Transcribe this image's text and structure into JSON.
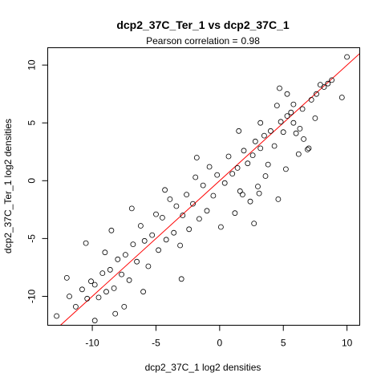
{
  "chart_data": {
    "type": "scatter",
    "title": "dcp2_37C_Ter_1 vs dcp2_37C_1",
    "subtitle_prefix": "Pearson correlation =",
    "pearson_correlation": "0.98",
    "xlabel": "dcp2_37C_1 log2 densities",
    "ylabel": "dcp2_37C_Ter_1 log2 densities",
    "xlim": [
      -13.5,
      11
    ],
    "ylim": [
      -12.5,
      11.5
    ],
    "x_ticks": [
      -10,
      -5,
      0,
      5,
      10
    ],
    "y_ticks": [
      -10,
      -5,
      0,
      5,
      10
    ],
    "x_tick_labels": [
      "-10",
      "-5",
      "0",
      "5",
      "10"
    ],
    "y_tick_labels": [
      "-10",
      "-5",
      "0",
      "5",
      "10"
    ],
    "point_marker": "open-circle",
    "point_color": "#000000",
    "fit_line": {
      "slope": 1.0,
      "intercept": 0.0,
      "color": "#ff0000"
    },
    "points": [
      [
        10.0,
        10.7
      ],
      [
        9.6,
        7.2
      ],
      [
        8.8,
        8.7
      ],
      [
        8.5,
        8.4
      ],
      [
        8.2,
        8.1
      ],
      [
        7.9,
        8.3
      ],
      [
        7.6,
        7.5
      ],
      [
        7.2,
        7.0
      ],
      [
        7.0,
        2.8
      ],
      [
        6.9,
        2.7
      ],
      [
        6.6,
        3.6
      ],
      [
        6.2,
        2.3
      ],
      [
        6.0,
        4.1
      ],
      [
        5.8,
        6.6
      ],
      [
        5.6,
        5.9
      ],
      [
        5.3,
        5.6
      ],
      [
        5.2,
        1.0
      ],
      [
        5.0,
        4.2
      ],
      [
        4.8,
        5.1
      ],
      [
        4.5,
        6.5
      ],
      [
        4.3,
        3.0
      ],
      [
        4.0,
        4.3
      ],
      [
        3.8,
        1.4
      ],
      [
        3.6,
        0.4
      ],
      [
        3.5,
        3.9
      ],
      [
        3.2,
        2.8
      ],
      [
        3.0,
        -0.5
      ],
      [
        2.8,
        3.4
      ],
      [
        2.6,
        2.2
      ],
      [
        2.4,
        -1.8
      ],
      [
        2.2,
        1.5
      ],
      [
        1.9,
        2.6
      ],
      [
        1.6,
        -0.9
      ],
      [
        1.4,
        1.1
      ],
      [
        1.2,
        -2.8
      ],
      [
        1.0,
        0.6
      ],
      [
        0.7,
        2.1
      ],
      [
        0.4,
        -0.2
      ],
      [
        0.1,
        -4.0
      ],
      [
        -0.2,
        0.5
      ],
      [
        -0.5,
        -1.3
      ],
      [
        -0.8,
        1.2
      ],
      [
        -1.0,
        -2.6
      ],
      [
        -1.3,
        -0.4
      ],
      [
        -1.6,
        -3.3
      ],
      [
        -1.9,
        0.3
      ],
      [
        -2.1,
        -2.0
      ],
      [
        -2.4,
        -4.2
      ],
      [
        -2.6,
        -1.2
      ],
      [
        -2.9,
        -3.0
      ],
      [
        -3.1,
        -5.6
      ],
      [
        -3.4,
        -2.2
      ],
      [
        -3.6,
        -4.5
      ],
      [
        -3.9,
        -1.6
      ],
      [
        -4.2,
        -5.1
      ],
      [
        -4.5,
        -3.2
      ],
      [
        -4.8,
        -6.0
      ],
      [
        -5.0,
        -2.9
      ],
      [
        -5.3,
        -4.7
      ],
      [
        -5.6,
        -7.4
      ],
      [
        -5.9,
        -5.2
      ],
      [
        -6.2,
        -3.9
      ],
      [
        -6.5,
        -7.0
      ],
      [
        -6.8,
        -5.5
      ],
      [
        -7.1,
        -8.6
      ],
      [
        -7.4,
        -6.4
      ],
      [
        -7.7,
        -8.1
      ],
      [
        -8.0,
        -6.8
      ],
      [
        -8.3,
        -9.3
      ],
      [
        -8.6,
        -7.7
      ],
      [
        -8.9,
        -9.6
      ],
      [
        -9.2,
        -8.0
      ],
      [
        -9.5,
        -10.1
      ],
      [
        -9.8,
        -9.0
      ],
      [
        -10.1,
        -8.7
      ],
      [
        -10.4,
        -10.2
      ],
      [
        -10.8,
        -9.4
      ],
      [
        -11.3,
        -10.9
      ],
      [
        -11.8,
        -10.0
      ],
      [
        -12.8,
        -11.7
      ],
      [
        -10.5,
        -5.4
      ],
      [
        -9.0,
        -6.2
      ],
      [
        -8.5,
        -4.3
      ],
      [
        -7.5,
        -10.9
      ],
      [
        -6.0,
        -9.6
      ],
      [
        -12.0,
        -8.4
      ],
      [
        -8.2,
        -11.5
      ],
      [
        -3.0,
        -8.5
      ],
      [
        1.8,
        -1.2
      ],
      [
        2.7,
        -3.7
      ],
      [
        3.1,
        -1.1
      ],
      [
        4.6,
        -1.6
      ],
      [
        1.5,
        4.3
      ],
      [
        -1.8,
        2.0
      ],
      [
        -4.3,
        -0.8
      ],
      [
        6.3,
        4.5
      ],
      [
        4.7,
        8.0
      ],
      [
        5.3,
        7.5
      ],
      [
        7.5,
        5.4
      ],
      [
        5.8,
        5.0
      ],
      [
        6.5,
        6.2
      ],
      [
        3.2,
        5.0
      ],
      [
        -6.9,
        -2.4
      ],
      [
        -9.8,
        -12.1
      ]
    ]
  }
}
